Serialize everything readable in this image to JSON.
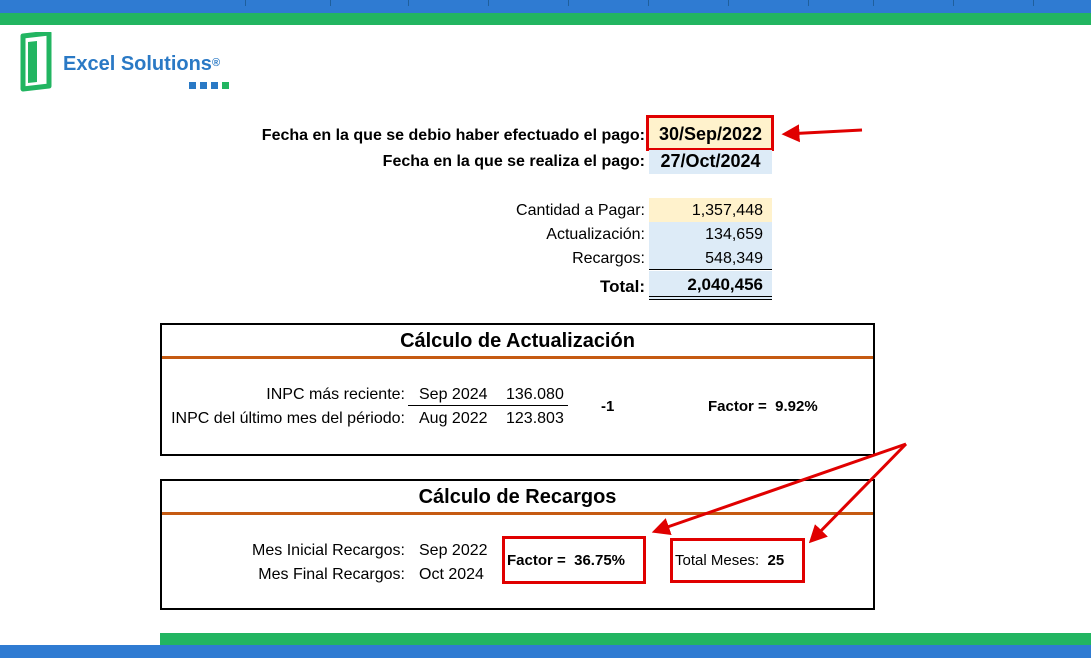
{
  "brand": {
    "name": "Excel Solutions",
    "reg": "®",
    "logo_colors": [
      "#22b561",
      "#2a79c5"
    ]
  },
  "dates": {
    "due_label": "Fecha en la que se debio haber efectuado el pago:",
    "due_value": "30/Sep/2022",
    "paid_label": "Fecha en la que se realiza el pago:",
    "paid_value": "27/Oct/2024"
  },
  "summary": {
    "cantidad_label": "Cantidad a Pagar:",
    "cantidad_value": "1,357,448",
    "actualizacion_label": "Actualización:",
    "actualizacion_value": "134,659",
    "recargos_label": "Recargos:",
    "recargos_value": "548,349",
    "total_label": "Total:",
    "total_value": "2,040,456"
  },
  "actualizacion": {
    "title": "Cálculo de Actualización",
    "row1_label": "INPC más reciente:",
    "row1_month": "Sep 2024",
    "row1_value": "136.080",
    "row2_label": "INPC del último mes del périodo:",
    "row2_month": "Aug 2022",
    "row2_value": "123.803",
    "minus_one": "-1",
    "factor_label": "Factor =",
    "factor_value": "9.92%"
  },
  "recargos": {
    "title": "Cálculo de Recargos",
    "start_label": "Mes Inicial Recargos:",
    "start_value": "Sep 2022",
    "end_label": "Mes Final Recargos:",
    "end_value": "Oct 2024",
    "factor_label": "Factor =",
    "factor_value": "36.75%",
    "months_label": "Total Meses:",
    "months_value": "25"
  },
  "colors": {
    "yellow_cell": "#fff2cc",
    "blue_cell": "#ddebf7",
    "accent_orange": "#c55a11",
    "highlight_red": "#e00000"
  }
}
